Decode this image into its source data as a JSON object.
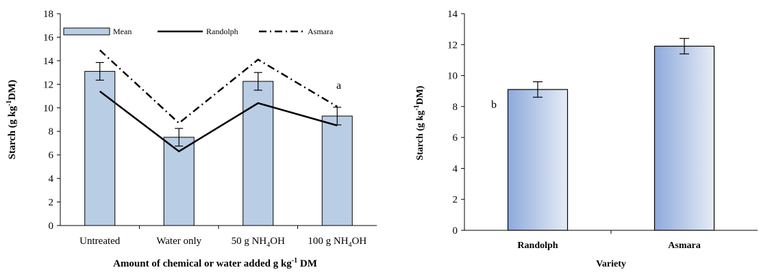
{
  "chart_data": [
    {
      "type": "bar",
      "panel_label": "a",
      "categories": [
        "Untreated",
        "Water only",
        "50 g NH4OH",
        "100 g NH4OH"
      ],
      "category_labels": [
        {
          "main": "Untreated",
          "sub": "",
          "tail": ""
        },
        {
          "main": "Water only",
          "sub": "",
          "tail": ""
        },
        {
          "main": "50 g NH",
          "sub": "4",
          "tail": "OH"
        },
        {
          "main": "100 g NH",
          "sub": "4",
          "tail": "OH"
        }
      ],
      "series": [
        {
          "name": "Mean",
          "kind": "bar",
          "values": [
            13.1,
            7.5,
            12.25,
            9.3
          ],
          "errors": [
            0.75,
            0.75,
            0.75,
            0.75
          ],
          "color": "#b9cde5",
          "stroke": "#000000"
        },
        {
          "name": "Randolph",
          "kind": "line",
          "style": "solid",
          "values": [
            11.4,
            6.3,
            10.4,
            8.5
          ],
          "color": "#000000"
        },
        {
          "name": "Asmara",
          "kind": "line",
          "style": "dash-dot",
          "values": [
            14.9,
            8.7,
            14.1,
            10.1
          ],
          "color": "#000000"
        }
      ],
      "xlabel": "Amount of chemical or water added g kg",
      "xlabel_sup": "-1",
      "xlabel_tail": " DM",
      "ylabel_main": "Starch (g kg",
      "ylabel_sup": "-1",
      "ylabel_tail": "DM)",
      "ylim": [
        0,
        18
      ],
      "yticks": [
        "0",
        "2",
        "4",
        "6",
        "8",
        "10",
        "12",
        "14",
        "16",
        "18"
      ],
      "grid": false,
      "legend_placement": "top"
    },
    {
      "type": "bar",
      "panel_label": "b",
      "categories": [
        "Randolph",
        "Asmara"
      ],
      "series": [
        {
          "name": "",
          "kind": "bar",
          "values": [
            9.1,
            11.9
          ],
          "errors": [
            0.5,
            0.5
          ],
          "color_start": "#8eaadb",
          "color_end": "#e6ecf6",
          "stroke": "#000000"
        }
      ],
      "xlabel": "Variety",
      "ylabel_main": "Starch (g kg",
      "ylabel_sup": "-1",
      "ylabel_tail": "DM)",
      "ylim": [
        0,
        14
      ],
      "yticks": [
        "0",
        "2",
        "4",
        "6",
        "8",
        "10",
        "12",
        "14"
      ],
      "grid": false
    }
  ]
}
